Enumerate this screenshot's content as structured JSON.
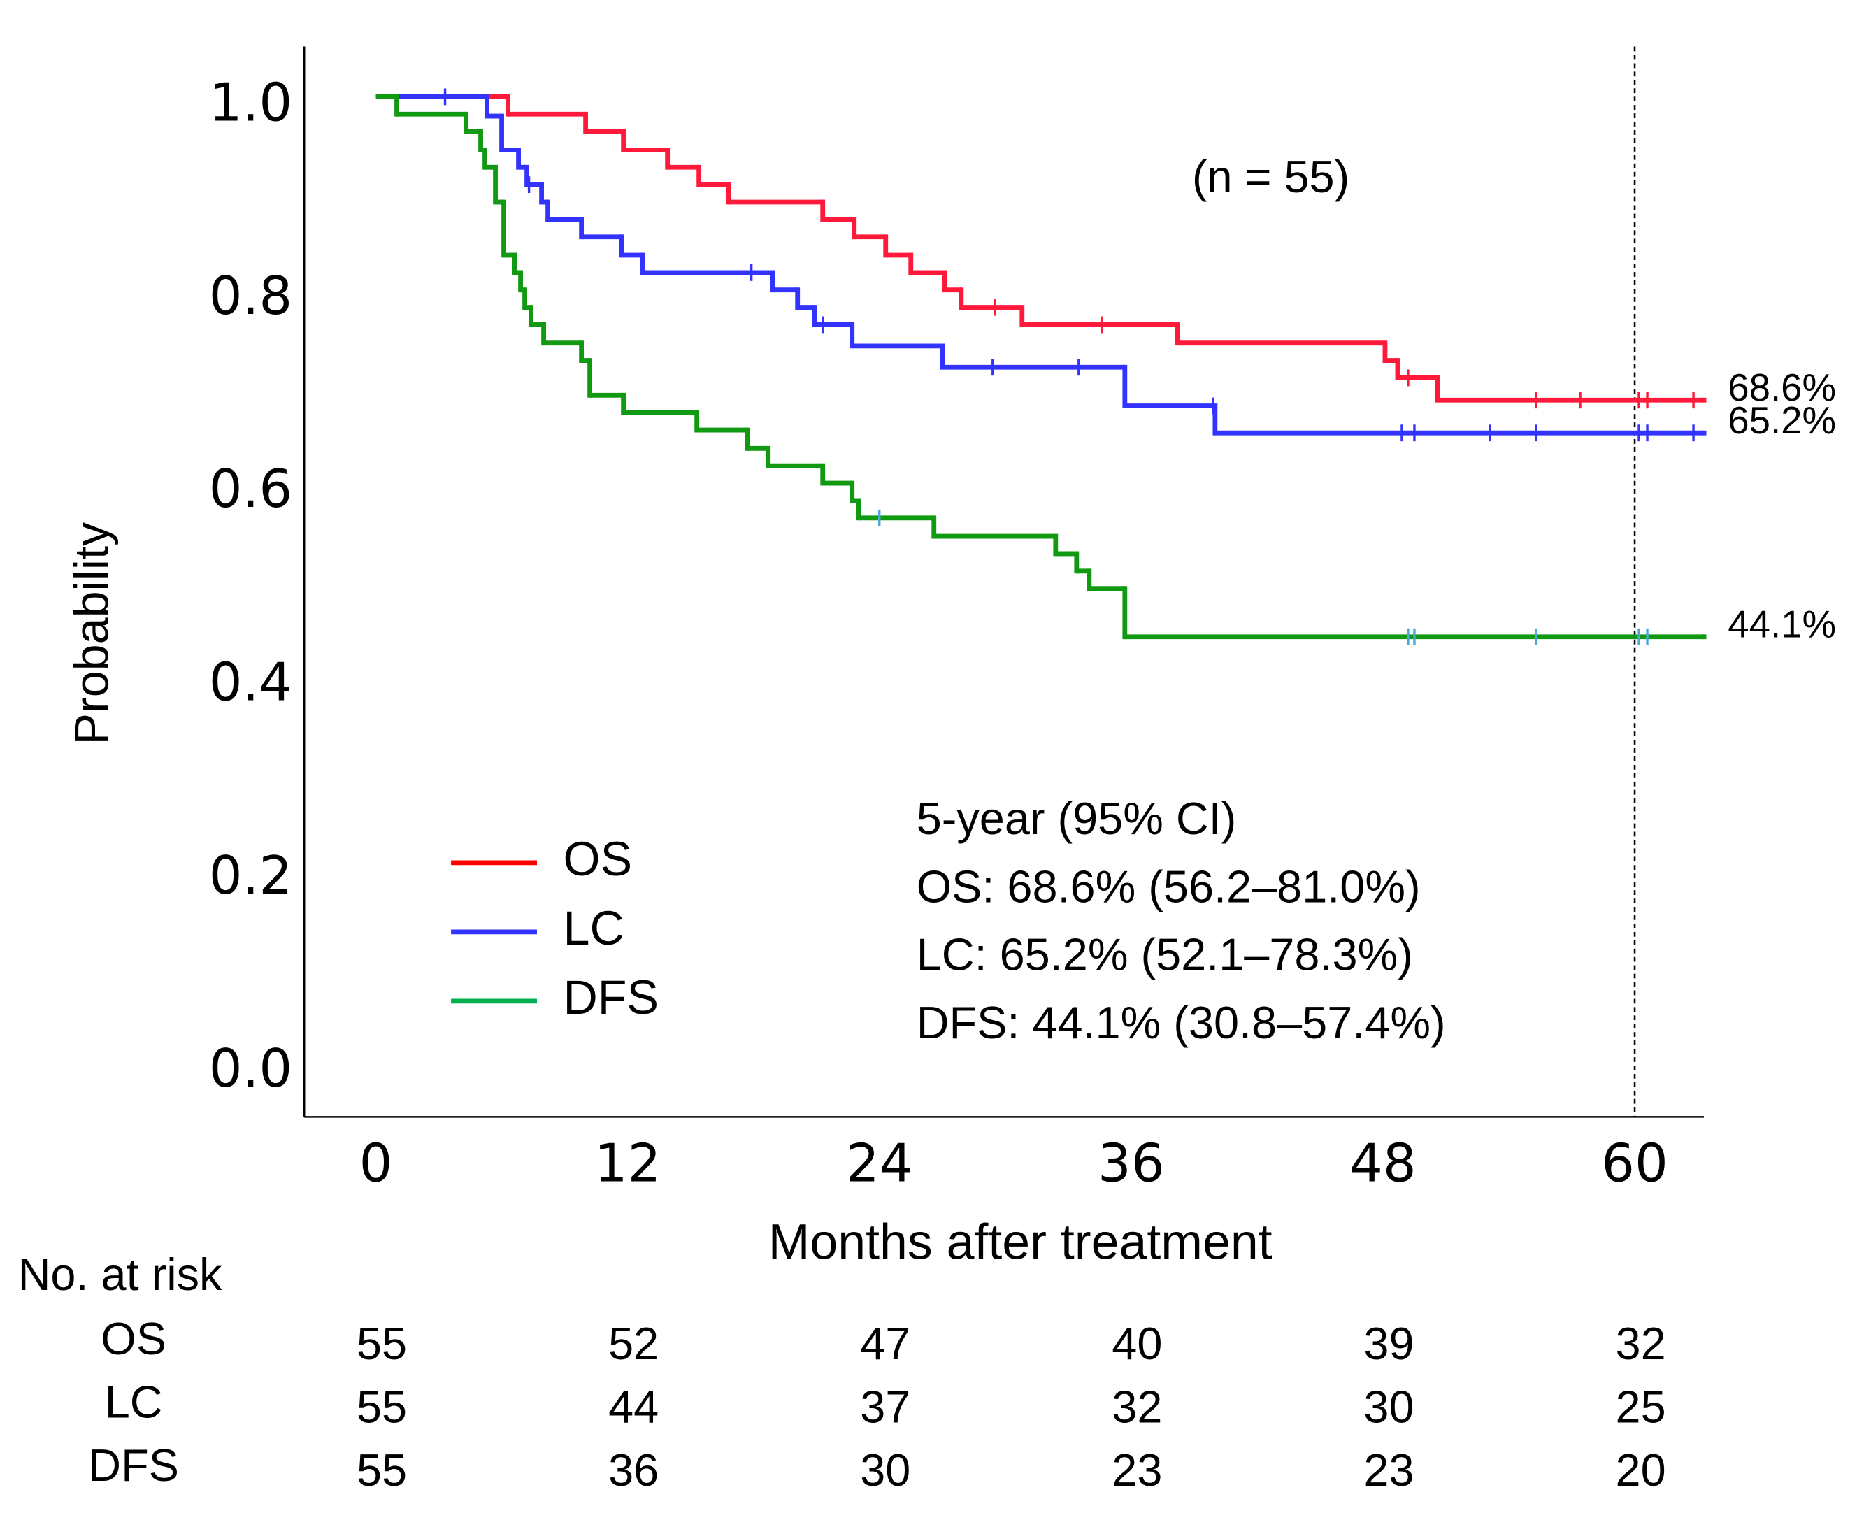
{
  "chart_data": {
    "type": "survival",
    "ylabel": "Probability",
    "xlabel": "Months after treatment",
    "annotation": "(n = 55)",
    "summary_lines": [
      "5-year (95% CI)",
      "OS: 68.6% (56.2–81.0%)",
      "LC: 65.2% (52.1–78.3%)",
      "DFS: 44.1% (30.8–57.4%)"
    ],
    "xlim": [
      -3.41,
      63.3
    ],
    "ylim": [
      -0.056,
      1.052
    ],
    "xticks": [
      0,
      12,
      24,
      36,
      48,
      60
    ],
    "yticks": [
      {
        "value": 0,
        "label": "0.0"
      },
      0.2,
      0.4,
      0.6,
      0.8,
      {
        "value": 1,
        "label": "1.0"
      }
    ],
    "reference_x": 60,
    "series": [
      {
        "name": "OS",
        "color": "#ff1a3c",
        "legend_color": "#ff0000",
        "censor_color": "#ff1a3c",
        "end_label": "68.6%",
        "x": [
          0,
          6.3,
          10,
          11.8,
          13.9,
          15.4,
          16.8,
          21.3,
          22.8,
          24.3,
          25.5,
          27.1,
          27.9,
          30.8,
          38.2,
          48.1,
          48.7,
          50.6,
          63.3
        ],
        "values": [
          1,
          0.982,
          0.964,
          0.945,
          0.927,
          0.909,
          0.891,
          0.873,
          0.855,
          0.836,
          0.818,
          0.8,
          0.782,
          0.764,
          0.745,
          0.727,
          0.709,
          0.686,
          0.686
        ],
        "censored": [
          29.5,
          34.6,
          49.2,
          55.3,
          57.4,
          60.2,
          60.6,
          62.8
        ]
      },
      {
        "name": "LC",
        "color": "#3333ff",
        "legend_color": "#3333ff",
        "censor_color": "#3333ff",
        "end_label": "65.2%",
        "x": [
          0,
          5.3,
          6,
          6.8,
          7.2,
          7.9,
          8.2,
          9.8,
          11.7,
          12.7,
          18.9,
          20.1,
          20.9,
          22.7,
          27,
          35.7,
          40,
          63.3
        ],
        "values": [
          1,
          0.98,
          0.945,
          0.927,
          0.909,
          0.891,
          0.873,
          0.855,
          0.836,
          0.818,
          0.8,
          0.782,
          0.764,
          0.742,
          0.72,
          0.68,
          0.652,
          0.652
        ],
        "censored": [
          3.3,
          7.3,
          17.9,
          21.3,
          29.4,
          33.5,
          39.9,
          48.9,
          49.5,
          53.1,
          55.3,
          60.2,
          60.6,
          62.8
        ]
      },
      {
        "name": "DFS",
        "color": "#119911",
        "legend_color": "#00b050",
        "censor_color": "#4aa8d8",
        "end_label": "44.1%",
        "x": [
          0,
          1,
          4.3,
          5,
          5.2,
          5.7,
          6.1,
          6.6,
          6.9,
          7.1,
          7.4,
          8,
          9.8,
          10.2,
          11.8,
          15.3,
          17.7,
          18.7,
          21.3,
          22.7,
          23,
          26.6,
          32.4,
          33.4,
          34,
          35.7,
          63.3
        ],
        "values": [
          1,
          0.982,
          0.964,
          0.945,
          0.927,
          0.891,
          0.836,
          0.818,
          0.8,
          0.782,
          0.764,
          0.745,
          0.727,
          0.691,
          0.673,
          0.655,
          0.636,
          0.618,
          0.6,
          0.582,
          0.564,
          0.545,
          0.527,
          0.509,
          0.491,
          0.441,
          0.441
        ],
        "censored": [
          24,
          49.2,
          49.5,
          55.3,
          60.2,
          60.6
        ]
      }
    ],
    "risk_table": {
      "title": "No. at risk",
      "rows": [
        {
          "label": "OS",
          "values": [
            55,
            52,
            47,
            40,
            39,
            32
          ]
        },
        {
          "label": "LC",
          "values": [
            55,
            44,
            37,
            32,
            30,
            25
          ]
        },
        {
          "label": "DFS",
          "values": [
            55,
            36,
            30,
            23,
            23,
            20
          ]
        }
      ]
    }
  }
}
